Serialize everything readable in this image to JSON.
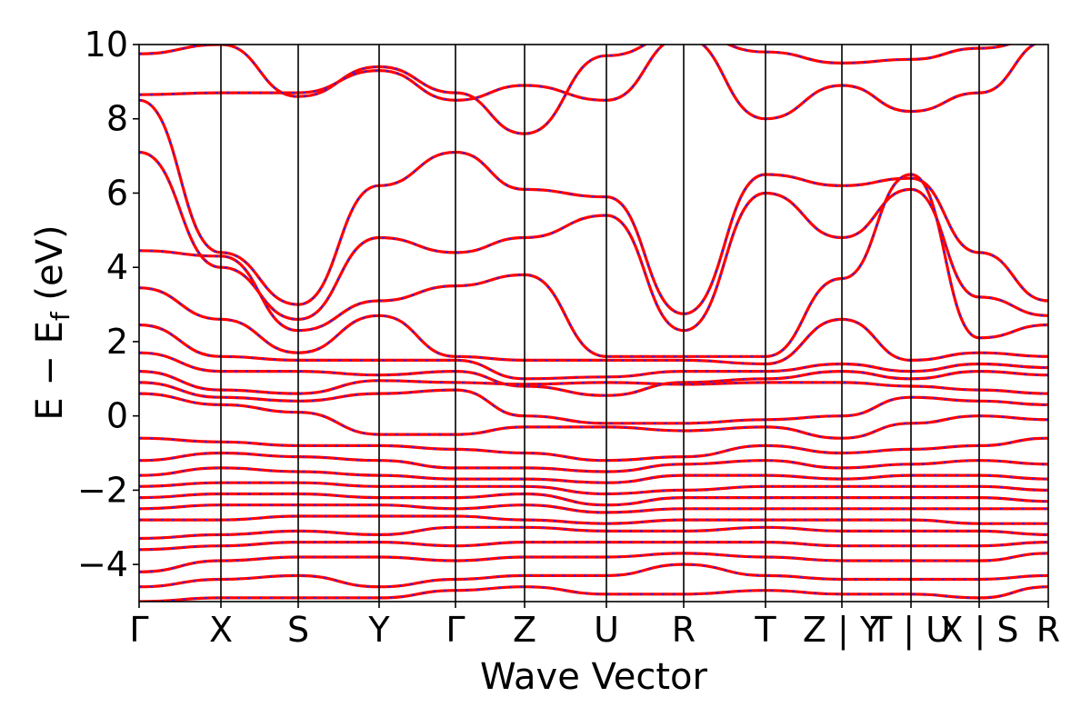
{
  "chart_data": {
    "type": "line",
    "title": "",
    "xlabel": "Wave Vector",
    "ylabel": "E − E",
    "ylabel_sub": "f",
    "ylabel_unit": "(eV)",
    "ylim": [
      -5,
      10
    ],
    "yticks": [
      -4,
      -2,
      0,
      2,
      4,
      6,
      8,
      10
    ],
    "ytick_labels": [
      "−4",
      "−2",
      "0",
      "2",
      "4",
      "6",
      "8",
      "10"
    ],
    "grid": false,
    "legend": "none",
    "xtick_labels": [
      "Γ",
      "X",
      "S",
      "Y",
      "Γ",
      "Z",
      "U",
      "R",
      "T",
      "Z | Y",
      "T | U",
      "X | S",
      "R"
    ],
    "colors": {
      "band": "#ff0000",
      "band_dash": "#2020ff",
      "axes": "#000000"
    },
    "series": [
      {
        "x": [
          0,
          1,
          2,
          3,
          4,
          5,
          6,
          7,
          8,
          9,
          10,
          11,
          12
        ],
        "values": [
          9.75,
          10.0,
          8.6,
          9.4,
          8.7,
          7.6,
          9.7,
          10.3,
          9.8,
          9.5,
          9.6,
          9.9,
          10.2
        ]
      },
      {
        "x": [
          0,
          1,
          2,
          3,
          4,
          5,
          6,
          7,
          8,
          9,
          10,
          11,
          12
        ],
        "values": [
          8.65,
          8.7,
          8.7,
          9.3,
          8.5,
          8.9,
          8.5,
          10.2,
          8.0,
          8.9,
          8.2,
          8.7,
          10.1
        ]
      },
      {
        "x": [
          0,
          1,
          2,
          3,
          4,
          5,
          6,
          7,
          8,
          9,
          10,
          11,
          12
        ],
        "values": [
          8.5,
          4.4,
          3.0,
          6.2,
          7.1,
          6.1,
          5.9,
          2.75,
          6.5,
          6.2,
          6.4,
          4.4,
          3.1
        ]
      },
      {
        "x": [
          0,
          1,
          2,
          3,
          4,
          5,
          6,
          7,
          8,
          9,
          10,
          11,
          12
        ],
        "values": [
          7.1,
          4.0,
          2.6,
          4.8,
          4.4,
          4.8,
          5.4,
          2.3,
          6.0,
          4.8,
          6.1,
          3.2,
          2.7
        ]
      },
      {
        "x": [
          0,
          1,
          2,
          3,
          4,
          5,
          6,
          7,
          8,
          9,
          10,
          11,
          12
        ],
        "values": [
          4.45,
          4.3,
          2.3,
          3.1,
          3.5,
          3.8,
          1.6,
          1.6,
          1.6,
          3.7,
          6.5,
          2.1,
          2.45
        ]
      },
      {
        "x": [
          0,
          1,
          2,
          3,
          4,
          5,
          6,
          7,
          8,
          9,
          10,
          11,
          12
        ],
        "values": [
          3.45,
          2.6,
          1.7,
          2.7,
          1.6,
          1.5,
          1.5,
          1.5,
          1.4,
          2.6,
          1.5,
          1.7,
          1.6
        ]
      },
      {
        "x": [
          0,
          1,
          2,
          3,
          4,
          5,
          6,
          7,
          8,
          9,
          10,
          11,
          12
        ],
        "values": [
          2.45,
          1.6,
          1.5,
          1.5,
          1.5,
          1.0,
          1.05,
          1.2,
          1.2,
          1.4,
          1.2,
          1.4,
          1.3
        ]
      },
      {
        "x": [
          0,
          1,
          2,
          3,
          4,
          5,
          6,
          7,
          8,
          9,
          10,
          11,
          12
        ],
        "values": [
          1.7,
          1.2,
          1.2,
          1.1,
          1.2,
          0.8,
          0.55,
          0.9,
          1.0,
          1.2,
          1.0,
          1.2,
          1.1
        ]
      },
      {
        "x": [
          0,
          1,
          2,
          3,
          4,
          5,
          6,
          7,
          8,
          9,
          10,
          11,
          12
        ],
        "values": [
          1.2,
          0.7,
          0.6,
          0.95,
          0.9,
          0.85,
          0.9,
          0.85,
          0.9,
          0.9,
          0.8,
          0.7,
          0.6
        ]
      },
      {
        "x": [
          0,
          1,
          2,
          3,
          4,
          5,
          6,
          7,
          8,
          9,
          10,
          11,
          12
        ],
        "values": [
          0.9,
          0.5,
          0.4,
          0.6,
          0.7,
          0.0,
          -0.2,
          -0.2,
          -0.1,
          0.0,
          0.5,
          0.4,
          0.3
        ]
      },
      {
        "x": [
          0,
          1,
          2,
          3,
          4,
          5,
          6,
          7,
          8,
          9,
          10,
          11,
          12
        ],
        "values": [
          0.6,
          0.3,
          0.1,
          -0.5,
          -0.5,
          -0.3,
          -0.3,
          -0.4,
          -0.3,
          -0.6,
          -0.2,
          0.0,
          -0.1
        ]
      },
      {
        "x": [
          0,
          1,
          2,
          3,
          4,
          5,
          6,
          7,
          8,
          9,
          10,
          11,
          12
        ],
        "values": [
          -0.6,
          -0.7,
          -0.8,
          -0.8,
          -0.9,
          -1.0,
          -1.2,
          -1.1,
          -0.8,
          -1.0,
          -0.9,
          -0.8,
          -0.6
        ]
      },
      {
        "x": [
          0,
          1,
          2,
          3,
          4,
          5,
          6,
          7,
          8,
          9,
          10,
          11,
          12
        ],
        "values": [
          -1.2,
          -1.0,
          -1.1,
          -1.2,
          -1.4,
          -1.4,
          -1.5,
          -1.3,
          -1.2,
          -1.4,
          -1.3,
          -1.2,
          -1.3
        ]
      },
      {
        "x": [
          0,
          1,
          2,
          3,
          4,
          5,
          6,
          7,
          8,
          9,
          10,
          11,
          12
        ],
        "values": [
          -1.6,
          -1.4,
          -1.5,
          -1.6,
          -1.7,
          -1.7,
          -1.8,
          -1.6,
          -1.6,
          -1.7,
          -1.6,
          -1.6,
          -1.7
        ]
      },
      {
        "x": [
          0,
          1,
          2,
          3,
          4,
          5,
          6,
          7,
          8,
          9,
          10,
          11,
          12
        ],
        "values": [
          -1.9,
          -1.8,
          -1.8,
          -1.9,
          -1.9,
          -1.9,
          -2.1,
          -2.0,
          -1.9,
          -1.9,
          -1.9,
          -1.9,
          -2.0
        ]
      },
      {
        "x": [
          0,
          1,
          2,
          3,
          4,
          5,
          6,
          7,
          8,
          9,
          10,
          11,
          12
        ],
        "values": [
          -2.2,
          -2.1,
          -2.1,
          -2.2,
          -2.2,
          -2.1,
          -2.4,
          -2.2,
          -2.2,
          -2.2,
          -2.2,
          -2.2,
          -2.3
        ]
      },
      {
        "x": [
          0,
          1,
          2,
          3,
          4,
          5,
          6,
          7,
          8,
          9,
          10,
          11,
          12
        ],
        "values": [
          -2.5,
          -2.4,
          -2.4,
          -2.4,
          -2.5,
          -2.4,
          -2.6,
          -2.5,
          -2.5,
          -2.5,
          -2.5,
          -2.5,
          -2.5
        ]
      },
      {
        "x": [
          0,
          1,
          2,
          3,
          4,
          5,
          6,
          7,
          8,
          9,
          10,
          11,
          12
        ],
        "values": [
          -2.8,
          -2.8,
          -2.7,
          -2.7,
          -2.7,
          -2.8,
          -2.9,
          -2.8,
          -2.8,
          -2.8,
          -2.8,
          -2.9,
          -2.9
        ]
      },
      {
        "x": [
          0,
          1,
          2,
          3,
          4,
          5,
          6,
          7,
          8,
          9,
          10,
          11,
          12
        ],
        "values": [
          -3.3,
          -3.2,
          -3.1,
          -3.2,
          -3.0,
          -3.0,
          -3.1,
          -3.1,
          -3.0,
          -3.1,
          -3.1,
          -3.1,
          -3.2
        ]
      },
      {
        "x": [
          0,
          1,
          2,
          3,
          4,
          5,
          6,
          7,
          8,
          9,
          10,
          11,
          12
        ],
        "values": [
          -3.6,
          -3.5,
          -3.4,
          -3.4,
          -3.5,
          -3.4,
          -3.4,
          -3.4,
          -3.4,
          -3.5,
          -3.5,
          -3.5,
          -3.4
        ]
      },
      {
        "x": [
          0,
          1,
          2,
          3,
          4,
          5,
          6,
          7,
          8,
          9,
          10,
          11,
          12
        ],
        "values": [
          -4.2,
          -3.9,
          -3.8,
          -3.8,
          -3.9,
          -3.8,
          -3.8,
          -3.7,
          -3.8,
          -3.9,
          -3.9,
          -3.9,
          -3.7
        ]
      },
      {
        "x": [
          0,
          1,
          2,
          3,
          4,
          5,
          6,
          7,
          8,
          9,
          10,
          11,
          12
        ],
        "values": [
          -4.6,
          -4.4,
          -4.3,
          -4.6,
          -4.4,
          -4.3,
          -4.3,
          -4.0,
          -4.3,
          -4.4,
          -4.4,
          -4.4,
          -4.3
        ]
      },
      {
        "x": [
          0,
          1,
          2,
          3,
          4,
          5,
          6,
          7,
          8,
          9,
          10,
          11,
          12
        ],
        "values": [
          -5.0,
          -4.9,
          -4.9,
          -4.9,
          -4.7,
          -4.6,
          -4.8,
          -4.8,
          -4.7,
          -4.8,
          -4.8,
          -4.9,
          -4.6
        ]
      }
    ]
  }
}
